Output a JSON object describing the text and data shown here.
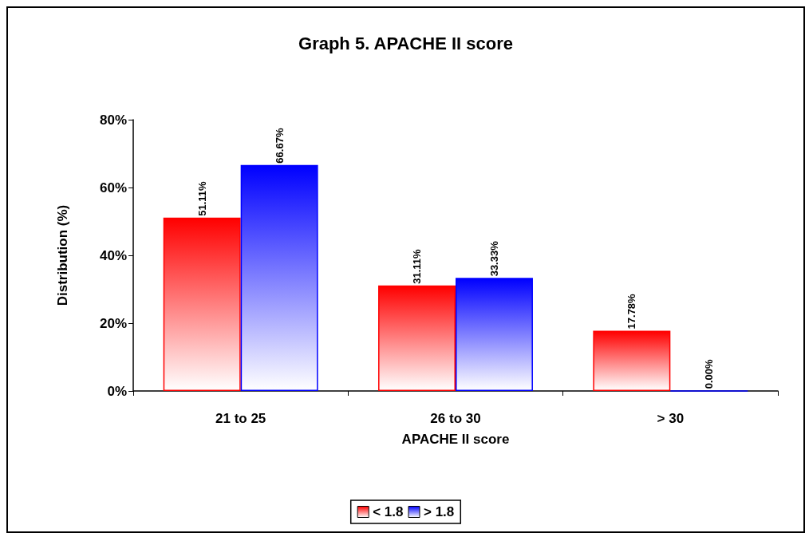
{
  "chart_data": {
    "type": "bar",
    "title": "Graph 5. APACHE II score",
    "xlabel": "APACHE II score",
    "ylabel": "Distribution (%)",
    "categories": [
      "21 to 25",
      "26 to 30",
      "> 30"
    ],
    "series": [
      {
        "name": "< 1.8",
        "color": "#ff0000",
        "values": [
          51.11,
          31.11,
          17.78
        ],
        "value_labels": [
          "51.11%",
          "31.11%",
          "17.78%"
        ]
      },
      {
        "name": "> 1.8",
        "color": "#0000ff",
        "values": [
          66.67,
          33.33,
          0
        ],
        "value_labels": [
          "66.67%",
          "33.33%",
          "0.00%"
        ]
      }
    ],
    "ylim": [
      0,
      80
    ],
    "yticks": [
      {
        "value": 0,
        "label": "0%"
      },
      {
        "value": 20,
        "label": "20%"
      },
      {
        "value": 40,
        "label": "40%"
      },
      {
        "value": 60,
        "label": "60%"
      },
      {
        "value": 80,
        "label": "80%"
      }
    ],
    "grid": false,
    "legend": "bottom"
  }
}
